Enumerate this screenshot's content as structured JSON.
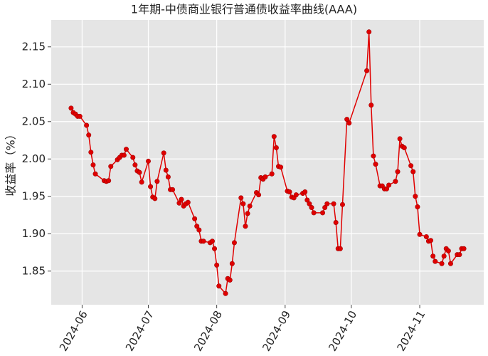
{
  "chart_data": {
    "type": "line",
    "title": "1年期-中债商业银行普通债收益率曲线(AAA)",
    "ylabel": "收益率（%）",
    "grid": true,
    "x": [
      "2024-05-27",
      "2024-05-28",
      "2024-05-29",
      "2024-05-30",
      "2024-05-31",
      "2024-06-03",
      "2024-06-04",
      "2024-06-05",
      "2024-06-06",
      "2024-06-07",
      "2024-06-11",
      "2024-06-12",
      "2024-06-13",
      "2024-06-14",
      "2024-06-17",
      "2024-06-18",
      "2024-06-19",
      "2024-06-20",
      "2024-06-21",
      "2024-06-24",
      "2024-06-25",
      "2024-06-26",
      "2024-06-27",
      "2024-06-28",
      "2024-07-01",
      "2024-07-02",
      "2024-07-03",
      "2024-07-04",
      "2024-07-05",
      "2024-07-08",
      "2024-07-09",
      "2024-07-10",
      "2024-07-11",
      "2024-07-12",
      "2024-07-15",
      "2024-07-16",
      "2024-07-17",
      "2024-07-18",
      "2024-07-19",
      "2024-07-22",
      "2024-07-23",
      "2024-07-24",
      "2024-07-25",
      "2024-07-26",
      "2024-07-29",
      "2024-07-30",
      "2024-07-31",
      "2024-08-01",
      "2024-08-02",
      "2024-08-05",
      "2024-08-06",
      "2024-08-07",
      "2024-08-08",
      "2024-08-09",
      "2024-08-12",
      "2024-08-13",
      "2024-08-14",
      "2024-08-15",
      "2024-08-16",
      "2024-08-19",
      "2024-08-20",
      "2024-08-21",
      "2024-08-22",
      "2024-08-23",
      "2024-08-26",
      "2024-08-27",
      "2024-08-28",
      "2024-08-29",
      "2024-08-30",
      "2024-09-02",
      "2024-09-03",
      "2024-09-04",
      "2024-09-05",
      "2024-09-06",
      "2024-09-09",
      "2024-09-10",
      "2024-09-11",
      "2024-09-12",
      "2024-09-13",
      "2024-09-14",
      "2024-09-18",
      "2024-09-19",
      "2024-09-20",
      "2024-09-23",
      "2024-09-24",
      "2024-09-25",
      "2024-09-26",
      "2024-09-27",
      "2024-09-29",
      "2024-09-30",
      "2024-10-08",
      "2024-10-09",
      "2024-10-10",
      "2024-10-11",
      "2024-10-12",
      "2024-10-14",
      "2024-10-15",
      "2024-10-16",
      "2024-10-17",
      "2024-10-18",
      "2024-10-21",
      "2024-10-22",
      "2024-10-23",
      "2024-10-24",
      "2024-10-25",
      "2024-10-28",
      "2024-10-29",
      "2024-10-30",
      "2024-10-31",
      "2024-11-01",
      "2024-11-04",
      "2024-11-05",
      "2024-11-06",
      "2024-11-07",
      "2024-11-08",
      "2024-11-11",
      "2024-11-12",
      "2024-11-13",
      "2024-11-14",
      "2024-11-15",
      "2024-11-18",
      "2024-11-19",
      "2024-11-20",
      "2024-11-21"
    ],
    "series": [
      {
        "color": "#e00000",
        "values": [
          2.068,
          2.062,
          2.06,
          2.057,
          2.057,
          2.045,
          2.032,
          2.009,
          1.992,
          1.98,
          1.971,
          1.97,
          1.971,
          1.99,
          1.999,
          2.002,
          2.005,
          2.005,
          2.013,
          2.002,
          1.992,
          1.984,
          1.982,
          1.969,
          1.997,
          1.963,
          1.949,
          1.947,
          1.97,
          2.008,
          1.985,
          1.976,
          1.959,
          1.959,
          1.941,
          1.946,
          1.937,
          1.94,
          1.942,
          1.92,
          1.91,
          1.905,
          1.89,
          1.89,
          1.888,
          1.89,
          1.88,
          1.858,
          1.83,
          1.82,
          1.84,
          1.838,
          1.86,
          1.888,
          1.948,
          1.94,
          1.91,
          1.927,
          1.937,
          1.955,
          1.952,
          1.975,
          1.973,
          1.976,
          1.98,
          2.03,
          2.015,
          1.99,
          1.989,
          1.957,
          1.956,
          1.949,
          1.948,
          1.952,
          1.954,
          1.956,
          1.945,
          1.94,
          1.935,
          1.928,
          1.928,
          1.935,
          1.94,
          1.94,
          1.915,
          1.88,
          1.88,
          1.939,
          2.053,
          2.048,
          2.118,
          2.17,
          2.072,
          2.004,
          1.993,
          1.964,
          1.964,
          1.96,
          1.96,
          1.965,
          1.97,
          1.983,
          2.027,
          2.017,
          2.015,
          1.991,
          1.983,
          1.95,
          1.936,
          1.899,
          1.896,
          1.89,
          1.891,
          1.87,
          1.863,
          1.86,
          1.87,
          1.88,
          1.877,
          1.86,
          1.872,
          1.872,
          1.88,
          1.88
        ]
      }
    ],
    "xlim": [
      "2024-05-18",
      "2024-11-30"
    ],
    "xticks": [
      "2024-06",
      "2024-07",
      "2024-08",
      "2024-09",
      "2024-10",
      "2024-11"
    ],
    "ylim": [
      1.805,
      2.186
    ],
    "yticks": [
      1.85,
      {
        "value": 1.9,
        "label": "1.90"
      },
      1.95,
      {
        "value": 2.0,
        "label": "2.00"
      },
      2.05,
      {
        "value": 2.1,
        "label": "2.10"
      },
      2.15
    ]
  }
}
